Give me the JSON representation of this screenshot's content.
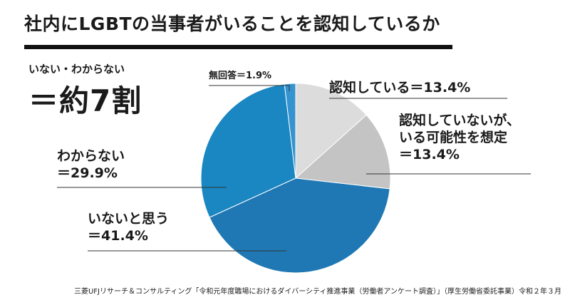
{
  "title": "社内にLGBTの当事者がいることを認知しているか",
  "summary": {
    "label": "いない・わからない",
    "value": "＝約7割"
  },
  "chart_data": {
    "type": "pie",
    "title": "社内にLGBTの当事者がいることを認知しているか",
    "start": "12 o'clock",
    "direction": "clockwise",
    "slices": [
      {
        "label": "認知している",
        "value": 13.4,
        "text": "認知している＝13.4%",
        "color": "#dcdcdc"
      },
      {
        "label": "認知していないが、いる可能性を想定",
        "value": 13.4,
        "text_line1": "認知していないが、",
        "text_line2": "いる可能性を想定",
        "text_line3": "＝13.4%",
        "color": "#c4c4c4"
      },
      {
        "label": "いないと思う",
        "value": 41.4,
        "text_line1": "いないと思う",
        "text_line2": "＝41.4%",
        "color": "#1f78b4"
      },
      {
        "label": "わからない",
        "value": 29.9,
        "text_line1": "わからない",
        "text_line2": "＝29.9%",
        "color": "#1a86c2"
      },
      {
        "label": "無回答",
        "value": 1.9,
        "text": "無回答＝1.9%",
        "color": "#3593cf"
      }
    ]
  },
  "footer": "三菱UFJリサーチ＆コンサルティング「令和元年度職場におけるダイバーシティ推進事業（労働者アンケート調査）」（厚生労働省委託事業）令和２年３月"
}
